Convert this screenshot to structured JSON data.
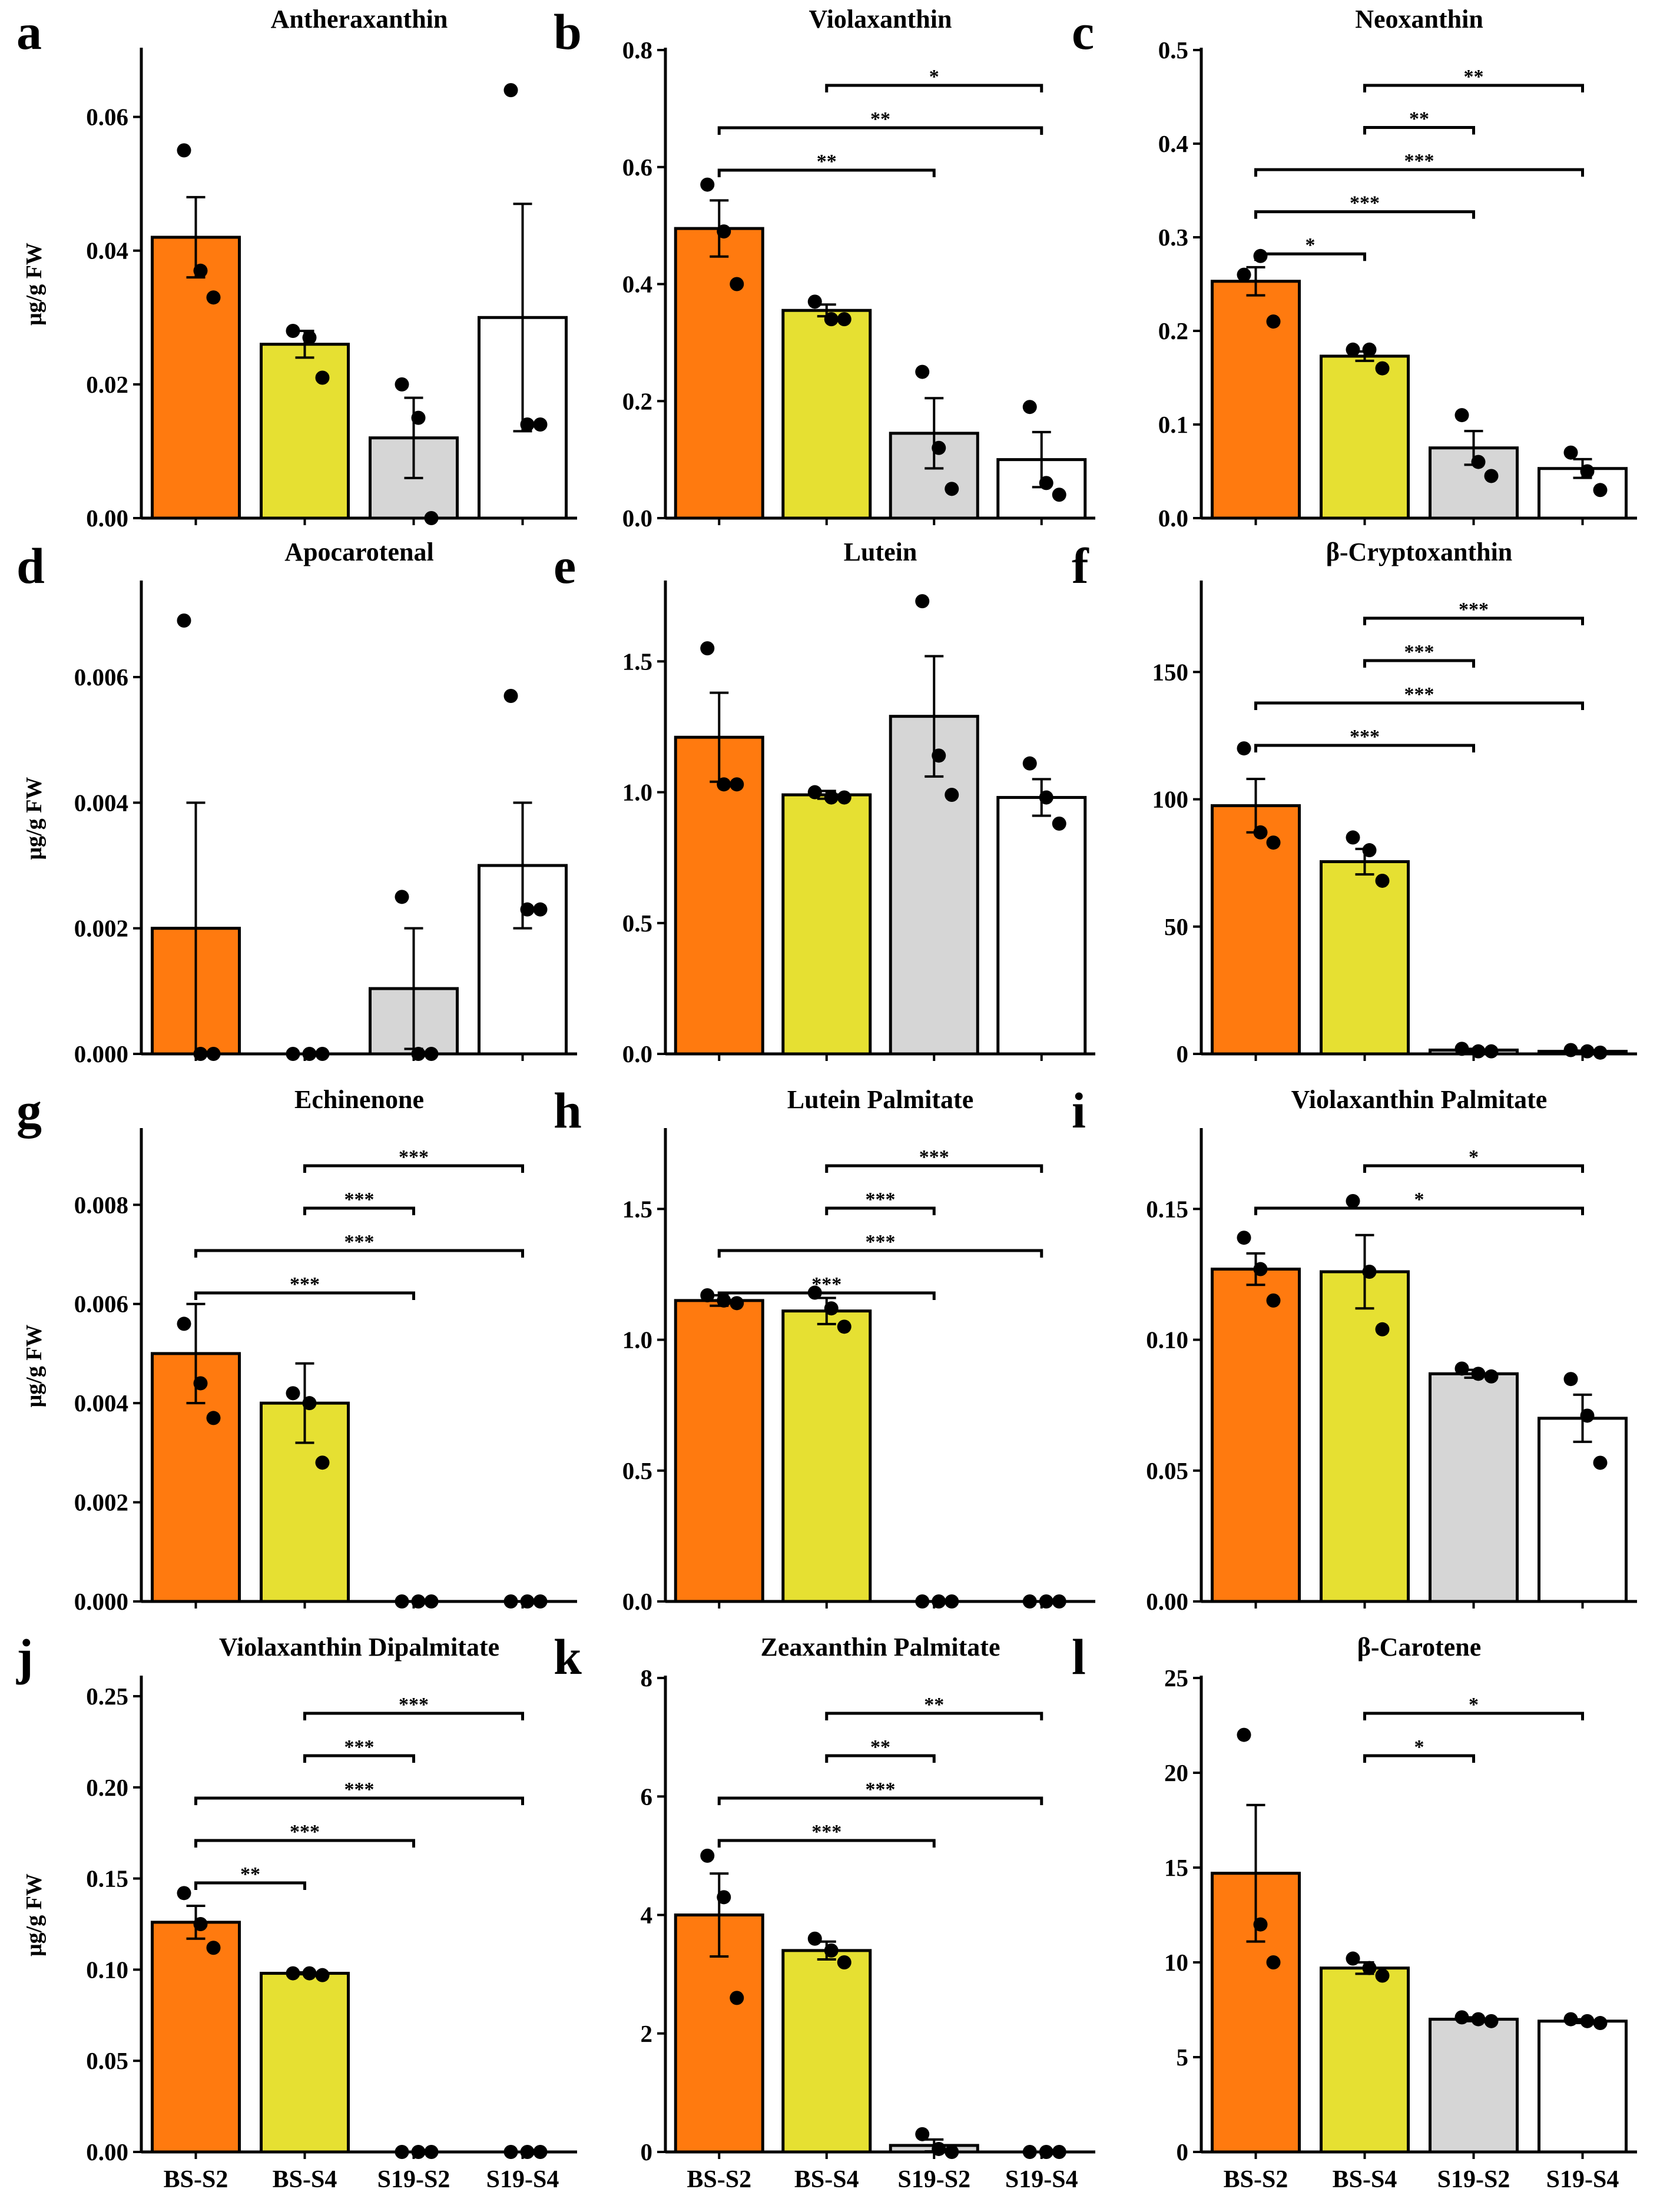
{
  "figure": {
    "ylabel": "μg/g FW",
    "categories": [
      "BS-S2",
      "BS-S4",
      "S19-S2",
      "S19-S4"
    ],
    "colors": [
      "#ff7a0f",
      "#e6e032",
      "#d6d6d6",
      "#ffffff"
    ]
  },
  "chart_data": [
    {
      "type": "bar",
      "letter": "a",
      "title": "Antheraxanthin",
      "ylabel": "μg/g FW",
      "categories": [
        "BS-S2",
        "BS-S4",
        "S19-S2",
        "S19-S4"
      ],
      "ylim": [
        0,
        0.07
      ],
      "yticks": [
        0,
        0.02,
        0.04,
        0.06
      ],
      "ytick_labels": [
        "0.00",
        "0.02",
        "0.04",
        "0.06"
      ],
      "values": [
        0.042,
        0.026,
        0.012,
        0.03
      ],
      "errors": [
        0.006,
        0.002,
        0.006,
        0.017
      ],
      "points": [
        [
          0.055,
          0.037,
          0.033
        ],
        [
          0.028,
          0.027,
          0.021
        ],
        [
          0.02,
          0.015,
          0.0
        ],
        [
          0.064,
          0.014,
          0.014
        ]
      ],
      "comparisons": []
    },
    {
      "type": "bar",
      "letter": "b",
      "title": "Violaxanthin",
      "ylabel": "",
      "categories": [
        "BS-S2",
        "BS-S4",
        "S19-S2",
        "S19-S4"
      ],
      "ylim": [
        0,
        0.8
      ],
      "yticks": [
        0,
        0.2,
        0.4,
        0.6,
        0.8
      ],
      "ytick_labels": [
        "0.0",
        "0.2",
        "0.4",
        "0.6",
        "0.8"
      ],
      "values": [
        0.495,
        0.355,
        0.145,
        0.1
      ],
      "errors": [
        0.048,
        0.01,
        0.06,
        0.047
      ],
      "points": [
        [
          0.57,
          0.49,
          0.4
        ],
        [
          0.37,
          0.34,
          0.34
        ],
        [
          0.25,
          0.12,
          0.05
        ],
        [
          0.19,
          0.06,
          0.04
        ]
      ],
      "comparisons": [
        {
          "from": 1,
          "to": 3,
          "label": "*"
        },
        {
          "from": 0,
          "to": 3,
          "label": "**"
        },
        {
          "from": 0,
          "to": 2,
          "label": "**"
        }
      ]
    },
    {
      "type": "bar",
      "letter": "c",
      "title": "Neoxanthin",
      "ylabel": "",
      "categories": [
        "BS-S2",
        "BS-S4",
        "S19-S2",
        "S19-S4"
      ],
      "ylim": [
        0,
        0.5
      ],
      "yticks": [
        0,
        0.1,
        0.2,
        0.3,
        0.4,
        0.5
      ],
      "ytick_labels": [
        "0.0",
        "0.1",
        "0.2",
        "0.3",
        "0.4",
        "0.5"
      ],
      "values": [
        0.253,
        0.173,
        0.075,
        0.053
      ],
      "errors": [
        0.015,
        0.005,
        0.018,
        0.01
      ],
      "points": [
        [
          0.26,
          0.28,
          0.21
        ],
        [
          0.18,
          0.18,
          0.16
        ],
        [
          0.11,
          0.06,
          0.045
        ],
        [
          0.07,
          0.05,
          0.03
        ]
      ],
      "comparisons": [
        {
          "from": 1,
          "to": 3,
          "label": "**"
        },
        {
          "from": 1,
          "to": 2,
          "label": "**"
        },
        {
          "from": 0,
          "to": 3,
          "label": "***"
        },
        {
          "from": 0,
          "to": 2,
          "label": "***"
        },
        {
          "from": 0,
          "to": 1,
          "label": "*"
        }
      ]
    },
    {
      "type": "bar",
      "letter": "d",
      "title": "Apocarotenal",
      "ylabel": "μg/g FW",
      "categories": [
        "BS-S2",
        "BS-S4",
        "S19-S2",
        "S19-S4"
      ],
      "ylim": [
        0,
        0.0075
      ],
      "yticks": [
        0,
        0.002,
        0.004,
        0.006
      ],
      "ytick_labels": [
        "0.000",
        "0.002",
        "0.004",
        "0.006"
      ],
      "values": [
        0.002,
        0.0,
        0.00104,
        0.003
      ],
      "errors": [
        0.002,
        0.0,
        0.00096,
        0.001
      ],
      "points": [
        [
          0.0069,
          0.0,
          0.0
        ],
        [
          0.0,
          0.0,
          0.0
        ],
        [
          0.0025,
          0.0,
          0.0
        ],
        [
          0.0057,
          0.0023,
          0.0023
        ]
      ],
      "comparisons": []
    },
    {
      "type": "bar",
      "letter": "e",
      "title": "Lutein",
      "ylabel": "",
      "categories": [
        "BS-S2",
        "BS-S4",
        "S19-S2",
        "S19-S4"
      ],
      "ylim": [
        0,
        1.8
      ],
      "yticks": [
        0,
        0.5,
        1.0,
        1.5
      ],
      "ytick_labels": [
        "0.0",
        "0.5",
        "1.0",
        "1.5"
      ],
      "values": [
        1.21,
        0.99,
        1.29,
        0.98
      ],
      "errors": [
        0.17,
        0.015,
        0.23,
        0.07
      ],
      "points": [
        [
          1.55,
          1.03,
          1.03
        ],
        [
          1.0,
          0.98,
          0.98
        ],
        [
          1.73,
          1.14,
          0.99
        ],
        [
          1.11,
          0.98,
          0.88
        ]
      ],
      "comparisons": []
    },
    {
      "type": "bar",
      "letter": "f",
      "title": "β-Cryptoxanthin",
      "ylabel": "",
      "categories": [
        "BS-S2",
        "BS-S4",
        "S19-S2",
        "S19-S4"
      ],
      "ylim": [
        0,
        185
      ],
      "yticks": [
        0,
        50,
        100,
        150
      ],
      "ytick_labels": [
        "0",
        "50",
        "100",
        "150"
      ],
      "values": [
        97.5,
        75.5,
        1.5,
        1.0
      ],
      "errors": [
        10.5,
        5.0,
        0.5,
        0.3
      ],
      "points": [
        [
          120,
          87,
          83
        ],
        [
          85,
          80,
          68
        ],
        [
          2,
          1,
          1
        ],
        [
          1.5,
          1,
          0.5
        ]
      ],
      "comparisons": [
        {
          "from": 1,
          "to": 3,
          "label": "***"
        },
        {
          "from": 1,
          "to": 2,
          "label": "***"
        },
        {
          "from": 0,
          "to": 3,
          "label": "***"
        },
        {
          "from": 0,
          "to": 2,
          "label": "***"
        }
      ]
    },
    {
      "type": "bar",
      "letter": "g",
      "title": "Echinenone",
      "ylabel": "μg/g FW",
      "categories": [
        "BS-S2",
        "BS-S4",
        "S19-S2",
        "S19-S4"
      ],
      "ylim": [
        0,
        0.0095
      ],
      "yticks": [
        0,
        0.002,
        0.004,
        0.006,
        0.008
      ],
      "ytick_labels": [
        "0.000",
        "0.002",
        "0.004",
        "0.006",
        "0.008"
      ],
      "values": [
        0.005,
        0.004,
        0.0,
        0.0
      ],
      "errors": [
        0.001,
        0.0008,
        0.0,
        0.0
      ],
      "points": [
        [
          0.0056,
          0.0044,
          0.0037
        ],
        [
          0.0042,
          0.004,
          0.0028
        ],
        [
          0.0,
          0.0,
          0.0
        ],
        [
          0.0,
          0.0,
          0.0
        ]
      ],
      "comparisons": [
        {
          "from": 1,
          "to": 3,
          "label": "***"
        },
        {
          "from": 1,
          "to": 2,
          "label": "***"
        },
        {
          "from": 0,
          "to": 3,
          "label": "***"
        },
        {
          "from": 0,
          "to": 2,
          "label": "***"
        }
      ]
    },
    {
      "type": "bar",
      "letter": "h",
      "title": "Lutein Palmitate",
      "ylabel": "",
      "categories": [
        "BS-S2",
        "BS-S4",
        "S19-S2",
        "S19-S4"
      ],
      "ylim": [
        0,
        1.8
      ],
      "yticks": [
        0,
        0.5,
        1.0,
        1.5
      ],
      "ytick_labels": [
        "0.0",
        "0.5",
        "1.0",
        "1.5"
      ],
      "values": [
        1.15,
        1.11,
        0.0,
        0.0
      ],
      "errors": [
        0.02,
        0.05,
        0.0,
        0.0
      ],
      "points": [
        [
          1.17,
          1.15,
          1.14
        ],
        [
          1.18,
          1.12,
          1.05
        ],
        [
          0.0,
          0.0,
          0.0
        ],
        [
          0.0,
          0.0,
          0.0
        ]
      ],
      "comparisons": [
        {
          "from": 1,
          "to": 3,
          "label": "***"
        },
        {
          "from": 1,
          "to": 2,
          "label": "***"
        },
        {
          "from": 0,
          "to": 3,
          "label": "***"
        },
        {
          "from": 0,
          "to": 2,
          "label": "***"
        }
      ]
    },
    {
      "type": "bar",
      "letter": "i",
      "title": "Violaxanthin Palmitate",
      "ylabel": "",
      "categories": [
        "BS-S2",
        "BS-S4",
        "S19-S2",
        "S19-S4"
      ],
      "ylim": [
        0,
        0.18
      ],
      "yticks": [
        0,
        0.05,
        0.1,
        0.15
      ],
      "ytick_labels": [
        "0.00",
        "0.05",
        "0.10",
        "0.15"
      ],
      "values": [
        0.127,
        0.126,
        0.087,
        0.07
      ],
      "errors": [
        0.006,
        0.014,
        0.0015,
        0.009
      ],
      "points": [
        [
          0.139,
          0.127,
          0.115
        ],
        [
          0.153,
          0.126,
          0.104
        ],
        [
          0.089,
          0.087,
          0.086
        ],
        [
          0.085,
          0.071,
          0.053
        ]
      ],
      "comparisons": [
        {
          "from": 1,
          "to": 3,
          "label": "*"
        },
        {
          "from": 0,
          "to": 3,
          "label": "*"
        }
      ]
    },
    {
      "type": "bar",
      "letter": "j",
      "title": "Violaxanthin Dipalmitate",
      "ylabel": "μg/g FW",
      "categories": [
        "BS-S2",
        "BS-S4",
        "S19-S2",
        "S19-S4"
      ],
      "ylim": [
        0,
        0.26
      ],
      "yticks": [
        0,
        0.05,
        0.1,
        0.15,
        0.2,
        0.25
      ],
      "ytick_labels": [
        "0.00",
        "0.05",
        "0.10",
        "0.15",
        "0.20",
        "0.25"
      ],
      "values": [
        0.126,
        0.098,
        0.0,
        0.0
      ],
      "errors": [
        0.009,
        0.0005,
        0.0,
        0.0
      ],
      "points": [
        [
          0.142,
          0.125,
          0.112
        ],
        [
          0.098,
          0.098,
          0.097
        ],
        [
          0.0,
          0.0,
          0.0
        ],
        [
          0.0,
          0.0,
          0.0
        ]
      ],
      "comparisons": [
        {
          "from": 1,
          "to": 3,
          "label": "***"
        },
        {
          "from": 1,
          "to": 2,
          "label": "***"
        },
        {
          "from": 0,
          "to": 3,
          "label": "***"
        },
        {
          "from": 0,
          "to": 2,
          "label": "***"
        },
        {
          "from": 0,
          "to": 1,
          "label": "**"
        }
      ]
    },
    {
      "type": "bar",
      "letter": "k",
      "title": "Zeaxanthin Palmitate",
      "ylabel": "",
      "categories": [
        "BS-S2",
        "BS-S4",
        "S19-S2",
        "S19-S4"
      ],
      "ylim": [
        0,
        8
      ],
      "yticks": [
        0,
        2,
        4,
        6,
        8
      ],
      "ytick_labels": [
        "0",
        "2",
        "4",
        "6",
        "8"
      ],
      "values": [
        4.0,
        3.4,
        0.11,
        0.0
      ],
      "errors": [
        0.7,
        0.15,
        0.1,
        0.0
      ],
      "points": [
        [
          5.0,
          4.3,
          2.6
        ],
        [
          3.6,
          3.4,
          3.2
        ],
        [
          0.3,
          0.05,
          0.0
        ],
        [
          0.0,
          0.0,
          0.0
        ]
      ],
      "comparisons": [
        {
          "from": 1,
          "to": 3,
          "label": "**"
        },
        {
          "from": 1,
          "to": 2,
          "label": "**"
        },
        {
          "from": 0,
          "to": 3,
          "label": "***"
        },
        {
          "from": 0,
          "to": 2,
          "label": "***"
        }
      ]
    },
    {
      "type": "bar",
      "letter": "l",
      "title": "β-Carotene",
      "ylabel": "",
      "categories": [
        "BS-S2",
        "BS-S4",
        "S19-S2",
        "S19-S4"
      ],
      "ylim": [
        0,
        25
      ],
      "yticks": [
        0,
        5,
        10,
        15,
        20,
        25
      ],
      "ytick_labels": [
        "0",
        "5",
        "10",
        "15",
        "20",
        "25"
      ],
      "values": [
        14.7,
        9.7,
        7.0,
        6.9
      ],
      "errors": [
        3.6,
        0.3,
        0.1,
        0.1
      ],
      "points": [
        [
          22.0,
          12.0,
          10.0
        ],
        [
          10.2,
          9.7,
          9.3
        ],
        [
          7.1,
          7.0,
          6.9
        ],
        [
          7.0,
          6.9,
          6.8
        ]
      ],
      "comparisons": [
        {
          "from": 1,
          "to": 3,
          "label": "*"
        },
        {
          "from": 1,
          "to": 2,
          "label": "*"
        }
      ]
    }
  ]
}
